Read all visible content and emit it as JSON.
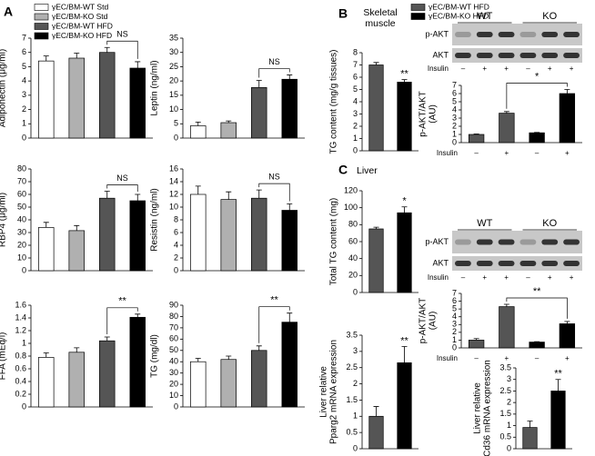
{
  "panel_labels": [
    "A",
    "B",
    "C"
  ],
  "section_labels": [
    "Skeletal\nmuscle",
    "Liver"
  ],
  "legends": [
    {
      "entries": [
        {
          "name": "γEC/BM-WT Std",
          "color": "#ffffff"
        },
        {
          "name": "γEC/BM-KO Std",
          "color": "#b0b0b0"
        },
        {
          "name": "γEC/BM-WT HFD",
          "color": "#555555"
        },
        {
          "name": "γEC/BM-KO HFD",
          "color": "#000000"
        }
      ]
    },
    {
      "entries": [
        {
          "name": "γEC/BM-WT HFD",
          "color": "#555555"
        },
        {
          "name": "γEC/BM-KO HFD",
          "color": "#000000"
        }
      ]
    }
  ],
  "blots": [
    {
      "groups": [
        "WT",
        "KO"
      ],
      "rows": [
        "p-AKT",
        "AKT"
      ],
      "x_label": "Insulin",
      "lanes": [
        "–",
        "+",
        "+",
        "–",
        "+",
        "+"
      ]
    },
    {
      "groups": [
        "WT",
        "KO"
      ],
      "rows": [
        "p-AKT",
        "AKT"
      ],
      "x_label": "Insulin",
      "lanes": [
        "–",
        "+",
        "+",
        "–",
        "+",
        "+"
      ]
    }
  ],
  "chart_data": [
    {
      "type": "bar",
      "ylabel": [
        "Adiponectin (μg/ml)"
      ],
      "categories": [
        null,
        null,
        null,
        null
      ],
      "values": [
        5.4,
        5.6,
        6.0,
        4.9
      ],
      "errors": [
        0.35,
        0.35,
        0.35,
        0.45
      ],
      "colors": [
        "#ffffff",
        "#b0b0b0",
        "#555555",
        "#000000"
      ],
      "ylim": [
        0,
        7
      ],
      "yticks": [
        0,
        1,
        2,
        3,
        4,
        5,
        6,
        7
      ],
      "brackets": [
        {
          "label": "NS",
          "between": [
            2,
            3
          ]
        }
      ]
    },
    {
      "type": "bar",
      "ylabel": [
        "Leptin (ng/ml)"
      ],
      "categories": [
        null,
        null,
        null,
        null
      ],
      "values": [
        4.3,
        5.4,
        17.7,
        20.6
      ],
      "errors": [
        1.3,
        0.6,
        2.5,
        1.5
      ],
      "colors": [
        "#ffffff",
        "#b0b0b0",
        "#555555",
        "#000000"
      ],
      "ylim": [
        0,
        35
      ],
      "yticks": [
        0,
        5,
        10,
        15,
        20,
        25,
        30,
        35
      ],
      "brackets": [
        {
          "label": "NS",
          "between": [
            2,
            3
          ]
        }
      ]
    },
    {
      "type": "bar",
      "ylabel": [
        "RBP4 (μg/ml)"
      ],
      "categories": [
        null,
        null,
        null,
        null
      ],
      "values": [
        34,
        31.5,
        57,
        55
      ],
      "errors": [
        4,
        4,
        5.5,
        5
      ],
      "colors": [
        "#ffffff",
        "#b0b0b0",
        "#555555",
        "#000000"
      ],
      "ylim": [
        0,
        80
      ],
      "yticks": [
        0,
        10,
        20,
        30,
        40,
        50,
        60,
        70,
        80
      ],
      "brackets": [
        {
          "label": "NS",
          "between": [
            2,
            3
          ]
        }
      ]
    },
    {
      "type": "bar",
      "ylabel": [
        "Resistin (ng/ml)"
      ],
      "categories": [
        null,
        null,
        null,
        null
      ],
      "values": [
        12,
        11.2,
        11.4,
        9.5
      ],
      "errors": [
        1.3,
        1.2,
        1.3,
        1.0
      ],
      "colors": [
        "#ffffff",
        "#b0b0b0",
        "#555555",
        "#000000"
      ],
      "ylim": [
        0,
        16
      ],
      "yticks": [
        0,
        2,
        4,
        6,
        8,
        10,
        12,
        14,
        16
      ],
      "brackets": [
        {
          "label": "NS",
          "between": [
            2,
            3
          ]
        }
      ]
    },
    {
      "type": "bar",
      "ylabel": [
        "FFA (mEq/l)"
      ],
      "categories": [
        null,
        null,
        null,
        null
      ],
      "values": [
        0.78,
        0.86,
        1.04,
        1.41
      ],
      "errors": [
        0.07,
        0.07,
        0.06,
        0.05
      ],
      "colors": [
        "#ffffff",
        "#b0b0b0",
        "#555555",
        "#000000"
      ],
      "ylim": [
        0,
        1.6
      ],
      "yticks": [
        0,
        0.2,
        0.4,
        0.6,
        0.8,
        1,
        1.2,
        1.4,
        1.6
      ],
      "brackets": [
        {
          "label": "**",
          "between": [
            2,
            3
          ]
        }
      ]
    },
    {
      "type": "bar",
      "ylabel": [
        "TG (mg/dl)"
      ],
      "categories": [
        null,
        null,
        null,
        null
      ],
      "values": [
        40,
        42,
        50,
        75
      ],
      "errors": [
        3,
        3,
        4,
        8
      ],
      "colors": [
        "#ffffff",
        "#b0b0b0",
        "#555555",
        "#000000"
      ],
      "ylim": [
        0,
        90
      ],
      "yticks": [
        0,
        10,
        20,
        30,
        40,
        50,
        60,
        70,
        80,
        90
      ],
      "brackets": [
        {
          "label": "**",
          "between": [
            2,
            3
          ]
        }
      ]
    },
    {
      "type": "bar",
      "ylabel": [
        "TG content (mg/g tissues)"
      ],
      "categories": [
        null,
        null
      ],
      "values": [
        7.0,
        5.6
      ],
      "errors": [
        0.2,
        0.2
      ],
      "colors": [
        "#555555",
        "#000000"
      ],
      "ylim": [
        0,
        8
      ],
      "yticks": [
        0,
        1,
        2,
        3,
        4,
        5,
        6,
        7,
        8
      ],
      "significance": [
        null,
        "**"
      ]
    },
    {
      "type": "bar",
      "ylabel": [
        "p-AKT/AKT",
        "(AU)"
      ],
      "x_label": "Insulin",
      "categories": [
        "–",
        "+",
        "–",
        "+"
      ],
      "values": [
        1.0,
        3.6,
        1.2,
        6.0
      ],
      "errors": [
        0.05,
        0.2,
        0.05,
        0.5
      ],
      "colors": [
        "#555555",
        "#555555",
        "#000000",
        "#000000"
      ],
      "ylim": [
        0,
        7
      ],
      "yticks": [
        0,
        1,
        2,
        3,
        4,
        5,
        6,
        7
      ],
      "brackets": [
        {
          "label": "*",
          "between": [
            1,
            3
          ]
        }
      ]
    },
    {
      "type": "bar",
      "ylabel": [
        "Total TG content (mg)"
      ],
      "categories": [
        null,
        null
      ],
      "values": [
        75,
        94
      ],
      "errors": [
        2,
        7
      ],
      "colors": [
        "#555555",
        "#000000"
      ],
      "ylim": [
        0,
        120
      ],
      "yticks": [
        0,
        20,
        40,
        60,
        80,
        100,
        120
      ],
      "significance": [
        null,
        "*"
      ]
    },
    {
      "type": "bar",
      "ylabel": [
        "p-AKT/AKT",
        "(AU)"
      ],
      "x_label": "Insulin",
      "categories": [
        "–",
        "+",
        "–",
        "+"
      ],
      "values": [
        1.0,
        5.3,
        0.75,
        3.1
      ],
      "errors": [
        0.2,
        0.3,
        0.05,
        0.3
      ],
      "colors": [
        "#555555",
        "#555555",
        "#000000",
        "#000000"
      ],
      "ylim": [
        0,
        7
      ],
      "yticks": [
        0,
        1,
        2,
        3,
        4,
        5,
        6,
        7
      ],
      "brackets": [
        {
          "label": "**",
          "between": [
            1,
            3
          ]
        }
      ]
    },
    {
      "type": "bar",
      "ylabel": [
        "Liver relative",
        "Pparg2 mRNA expression"
      ],
      "categories": [
        null,
        null
      ],
      "values": [
        1.0,
        2.65
      ],
      "errors": [
        0.3,
        0.5
      ],
      "colors": [
        "#555555",
        "#000000"
      ],
      "ylim": [
        0,
        3.5
      ],
      "yticks": [
        0,
        0.5,
        1,
        1.5,
        2,
        2.5,
        3,
        3.5
      ],
      "significance": [
        null,
        "**"
      ]
    },
    {
      "type": "bar",
      "ylabel": [
        "Liver relative",
        "Cd36 mRNA expression"
      ],
      "categories": [
        null,
        null
      ],
      "values": [
        0.92,
        2.5
      ],
      "errors": [
        0.28,
        0.5
      ],
      "colors": [
        "#555555",
        "#000000"
      ],
      "ylim": [
        0,
        3.5
      ],
      "yticks": [
        0,
        0.5,
        1,
        1.5,
        2,
        2.5,
        3,
        3.5
      ],
      "significance": [
        null,
        "**"
      ]
    }
  ]
}
